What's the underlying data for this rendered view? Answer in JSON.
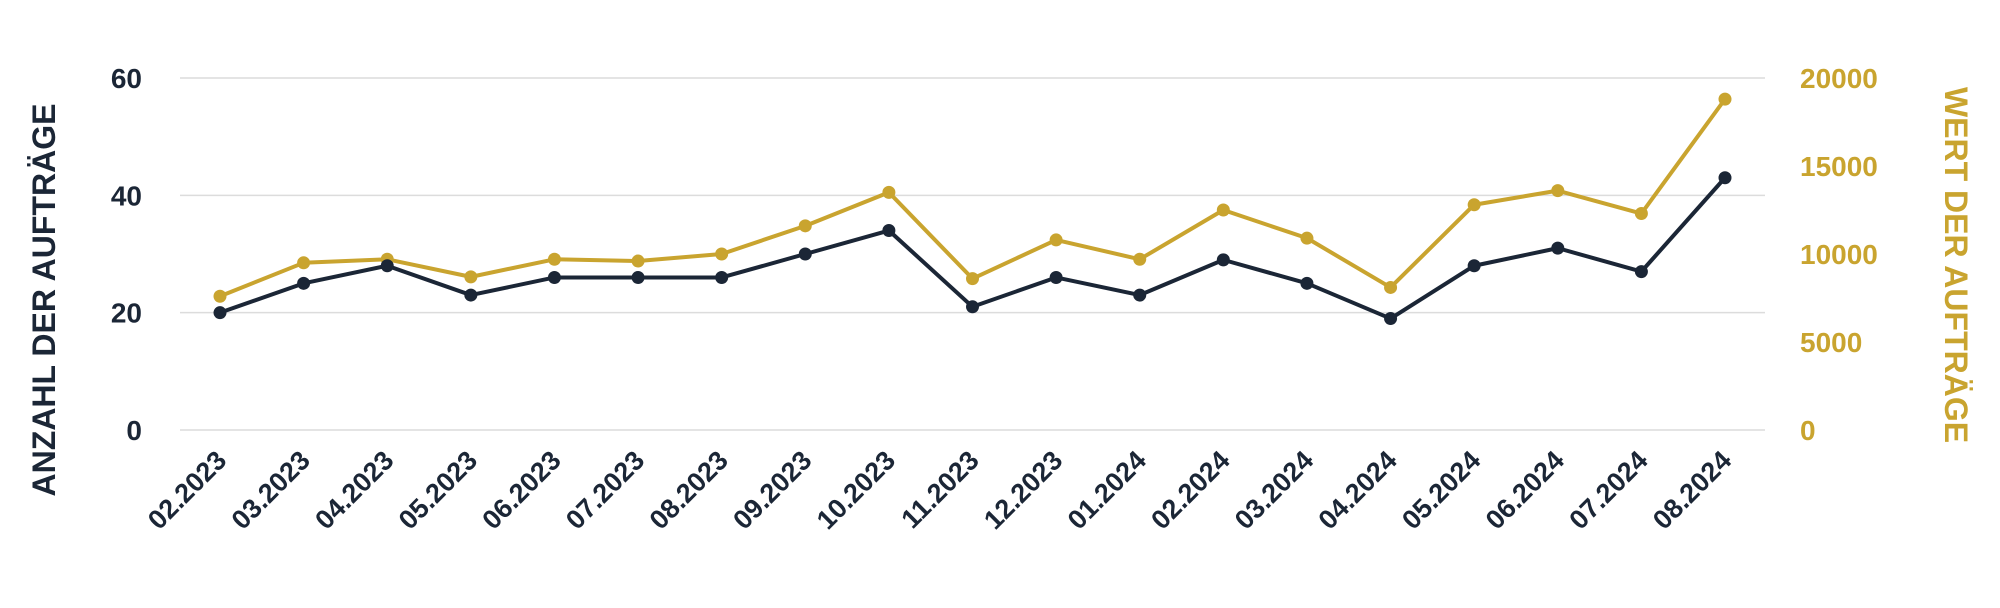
{
  "chart_data": {
    "type": "line",
    "categories": [
      "02.2023",
      "03.2023",
      "04.2023",
      "05.2023",
      "06.2023",
      "07.2023",
      "08.2023",
      "09.2023",
      "10.2023",
      "11.2023",
      "12.2023",
      "01.2024",
      "02.2024",
      "03.2024",
      "04.2024",
      "05.2024",
      "06.2024",
      "07.2024",
      "08.2024"
    ],
    "series": [
      {
        "axis": "left",
        "color": "#1b2636",
        "values": [
          20,
          25,
          28,
          23,
          26,
          26,
          26,
          30,
          34,
          21,
          26,
          23,
          29,
          25,
          19,
          28,
          31,
          27,
          43
        ]
      },
      {
        "axis": "right",
        "color": "#c9a42f",
        "values": [
          7600,
          9500,
          9700,
          8700,
          9700,
          9600,
          10000,
          11600,
          13500,
          8600,
          10800,
          9700,
          12500,
          10900,
          8100,
          12800,
          13600,
          12300,
          18800
        ]
      }
    ],
    "ylabel": "ANZAHL DER AUFTRÄGE",
    "y2label": "WERT DER AUFTRÄGE",
    "ylim": [
      0,
      60
    ],
    "y2lim": [
      0,
      20000
    ],
    "yticks": [
      0,
      20,
      40,
      60
    ],
    "y2ticks": [
      0,
      5000,
      10000,
      15000,
      20000
    ],
    "grid": true,
    "legend": "none"
  }
}
